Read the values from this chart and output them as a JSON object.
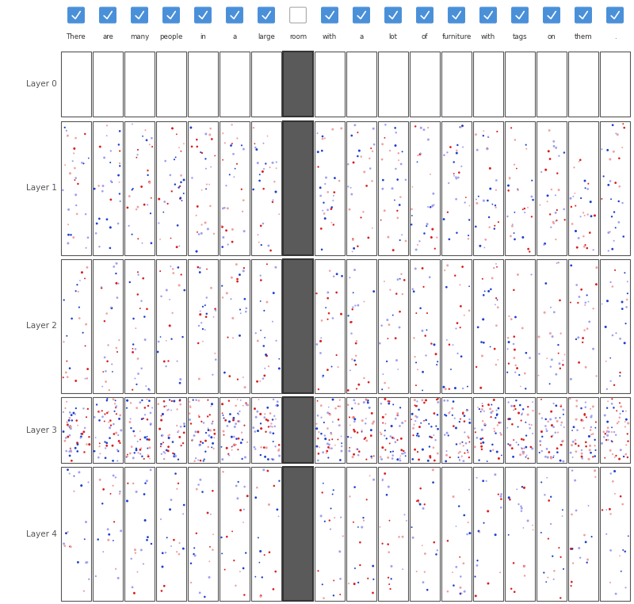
{
  "words": [
    "There",
    "are",
    "many",
    "people",
    "in",
    "a",
    "large",
    "room",
    "with",
    "a",
    "lot",
    "of",
    "furniture",
    "with",
    "tags",
    "on",
    "them",
    "."
  ],
  "layers": [
    "Layer 0",
    "Layer 1",
    "Layer 2",
    "Layer 3",
    "Layer 4"
  ],
  "highlight_col": 7,
  "highlight_color": "#5a5a5a",
  "highlight_border": "#333333",
  "normal_bg": "#ffffff",
  "normal_border": "#555555",
  "checked_color": "#4a90d9",
  "dot_red": "#d92020",
  "dot_blue": "#2040cc",
  "dot_lightred": "#f0a0a0",
  "dot_lightblue": "#a0a0f0",
  "n_cols": 18,
  "n_rows": 5,
  "fig_width": 8.0,
  "fig_height": 7.62,
  "layer_rel_heights": [
    1,
    2,
    2,
    1,
    2
  ],
  "n_dots_per_layer": [
    0,
    30,
    25,
    50,
    20
  ]
}
